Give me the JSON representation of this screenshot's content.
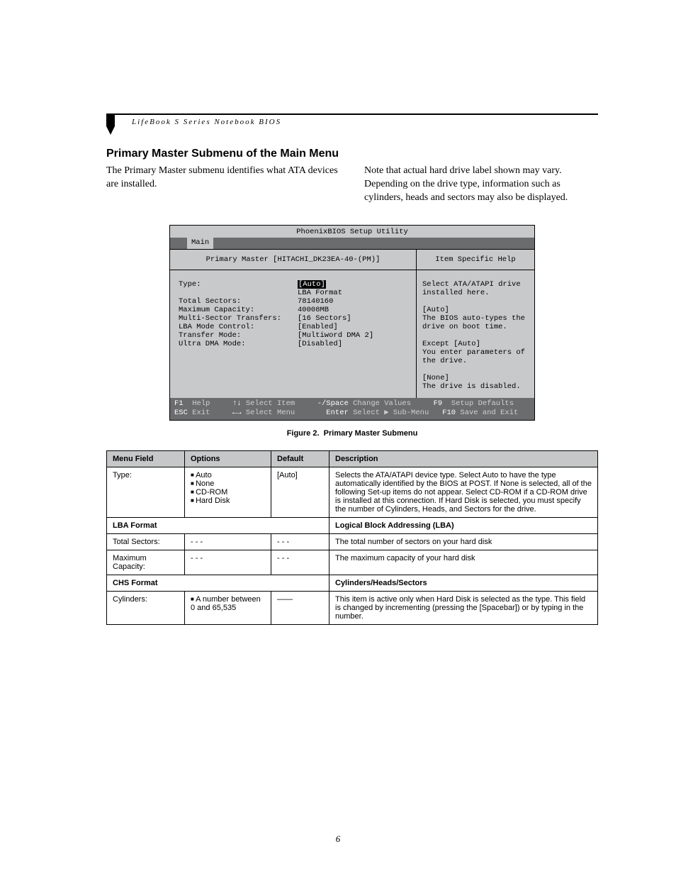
{
  "header": {
    "running_head": "LifeBook S Series Notebook BIOS"
  },
  "section": {
    "title": "Primary Master Submenu of the Main Menu",
    "para_left": "The Primary Master submenu identifies what ATA devices are installed.",
    "para_right": "Note that actual hard drive label shown may vary. Depending on the drive type, information such as cylinders, heads and sectors may also be displayed."
  },
  "bios": {
    "utility_title": "PhoenixBIOS Setup Utility",
    "tab_active": "Main",
    "left_title": "Primary Master [HITACHI_DK23EA-40-(PM)]",
    "right_title": "Item Specific Help",
    "rows": [
      {
        "label": "Type:",
        "value": "[Auto]",
        "selected": true
      },
      {
        "label": "",
        "value": "LBA Format"
      },
      {
        "label": "Total Sectors:",
        "value": "78140160"
      },
      {
        "label": "Maximum Capacity:",
        "value": "40008MB"
      },
      {
        "label": "",
        "value": ""
      },
      {
        "label": "Multi-Sector Transfers:",
        "value": "[16 Sectors]"
      },
      {
        "label": "LBA Mode Control:",
        "value": "[Enabled]"
      },
      {
        "label": "Transfer Mode:",
        "value": "[Multiword DMA 2]"
      },
      {
        "label": "Ultra DMA Mode:",
        "value": "[Disabled]"
      }
    ],
    "help_lines": [
      "Select ATA/ATAPI drive",
      "installed here.",
      "",
      "[Auto]",
      "The BIOS auto-types the",
      "drive on boot time.",
      "",
      "Except [Auto]",
      "You enter parameters of",
      "the drive.",
      "",
      "[None]",
      "The drive is disabled."
    ],
    "footer": {
      "f1": "F1",
      "f1_label": "Help",
      "updown": "↑↓",
      "updown_label": "Select Item",
      "minus": "-/Space",
      "minus_label": "Change Values",
      "f9": "F9",
      "f9_label": "Setup Defaults",
      "esc": "ESC",
      "esc_label": "Exit",
      "leftright": "←→",
      "leftright_label": "Select Menu",
      "enter": "Enter",
      "enter_label": "Select ▶ Sub-Menu",
      "f10": "F10",
      "f10_label": "Save and Exit"
    }
  },
  "figure": {
    "label": "Figure 2.",
    "title": "Primary Master Submenu"
  },
  "table": {
    "headers": {
      "c1": "Menu Field",
      "c2": "Options",
      "c3": "Default",
      "c4": "Description"
    },
    "rows": [
      {
        "field": "Type:",
        "options": [
          "Auto",
          "None",
          "CD-ROM",
          "Hard Disk"
        ],
        "default": "[Auto]",
        "desc": "Selects the ATA/ATAPI device type. Select Auto to have the type automatically identified by the BIOS at POST. If None is selected, all of the following Set-up items do not appear. Select CD-ROM if a CD-ROM drive is installed at this connection. If Hard Disk is selected, you must specify the number of Cylinders, Heads, and Sectors for the drive."
      }
    ],
    "section1": {
      "left": "LBA Format",
      "right": "Logical Block Addressing (LBA)"
    },
    "rows2": [
      {
        "field": "Total Sectors:",
        "options_text": "- - -",
        "default": "- - -",
        "desc": "The total number of sectors on your hard disk"
      },
      {
        "field": "Maximum Capacity:",
        "options_text": "- - -",
        "default": "- - -",
        "desc": "The maximum capacity of your hard disk"
      }
    ],
    "section2": {
      "left": "CHS Format",
      "right": "Cylinders/Heads/Sectors"
    },
    "rows3": [
      {
        "field": "Cylinders:",
        "options": [
          "A number between 0 and 65,535"
        ],
        "default": "——",
        "desc": "This item is active only when Hard Disk is selected as the type. This field is changed by incrementing (pressing the [Spacebar]) or by typing in the number."
      }
    ]
  },
  "page_number": "6",
  "colors": {
    "bios_bg": "#c8c9cb",
    "bios_dark": "#6b6c6e",
    "bios_light_text": "#cfd0d2",
    "table_header_bg": "#c6c7c9"
  }
}
